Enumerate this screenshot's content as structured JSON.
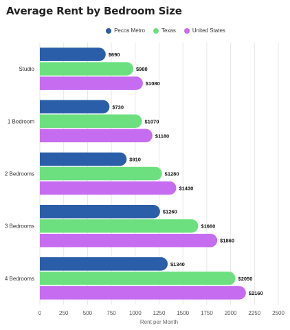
{
  "chart_data": {
    "type": "bar",
    "orientation": "horizontal",
    "title": "Average Rent by Bedroom Size",
    "xlabel": "Rent per Month",
    "ylabel": "",
    "xlim": [
      0,
      2500
    ],
    "xticks": [
      0,
      250,
      500,
      750,
      1000,
      1250,
      1500,
      1750,
      2000,
      2250,
      2500
    ],
    "grid": true,
    "legend_position": "top",
    "categories": [
      "Studio",
      "1 Bedroom",
      "2 Bedrooms",
      "3 Bedrooms",
      "4 Bedrooms"
    ],
    "series": [
      {
        "name": "Pecos Metro",
        "color": "#2a5ea8",
        "values": [
          690,
          730,
          910,
          1260,
          1340
        ]
      },
      {
        "name": "Texas",
        "color": "#6ce07f",
        "values": [
          980,
          1070,
          1280,
          1660,
          2050
        ]
      },
      {
        "name": "United States",
        "color": "#c56cf0",
        "values": [
          1080,
          1180,
          1430,
          1860,
          2160
        ]
      }
    ],
    "value_prefix": "$"
  }
}
